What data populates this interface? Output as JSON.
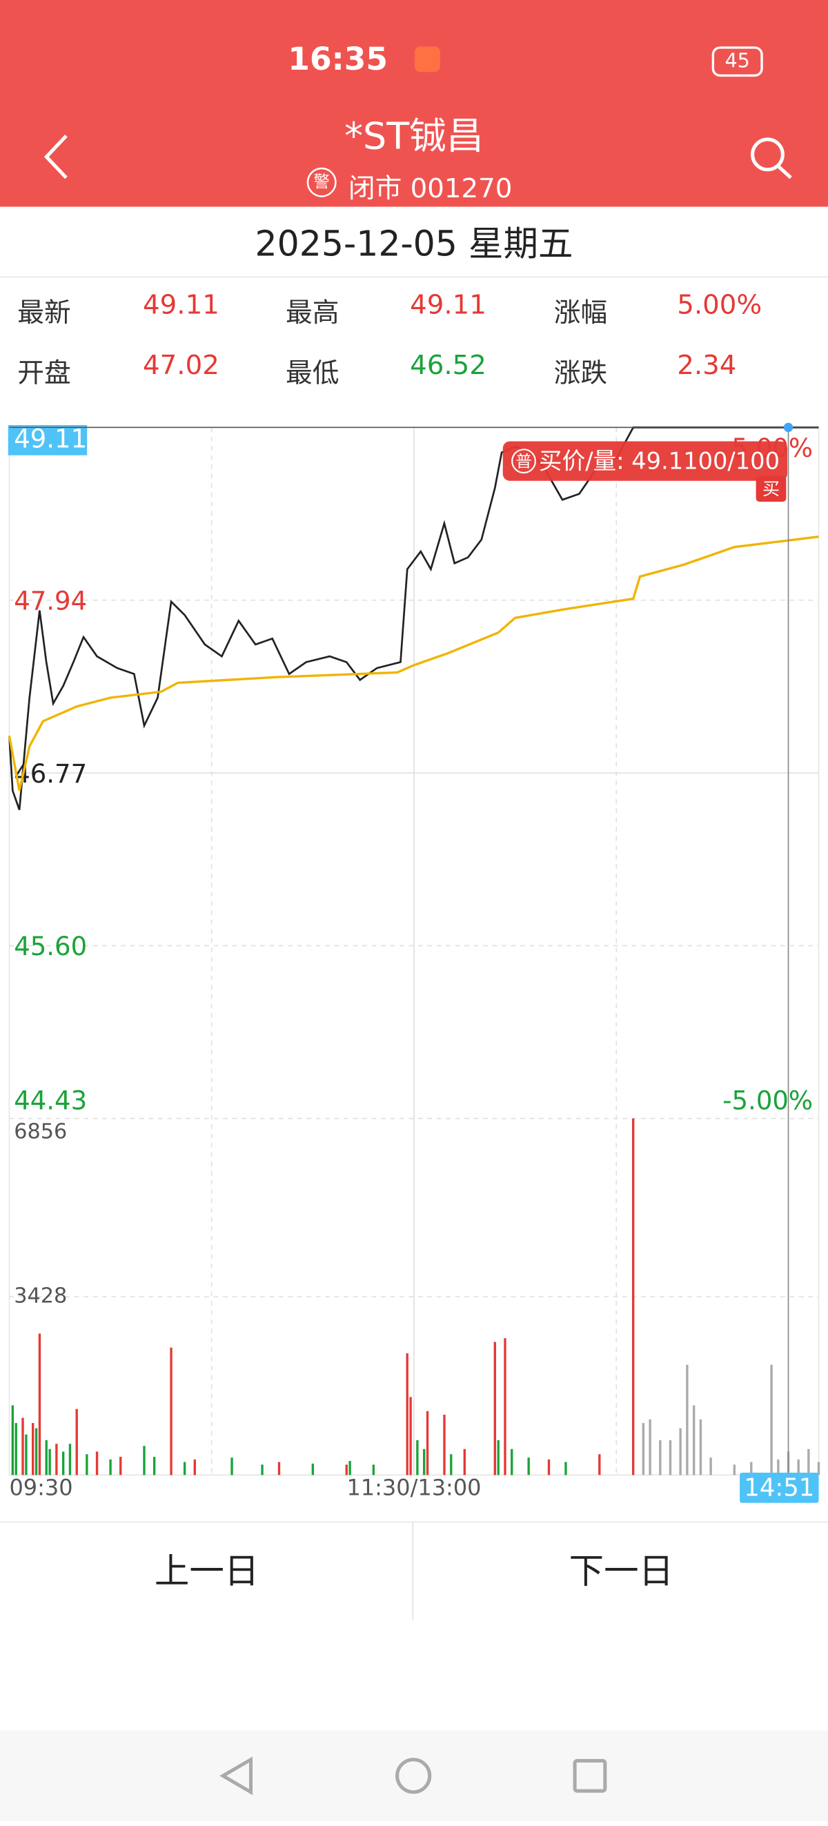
{
  "status_bar": {
    "time": "16:35",
    "battery": "45"
  },
  "header": {
    "title": "*ST铖昌",
    "badge": "警",
    "subtitle": "闭市 001270"
  },
  "date": "2025-12-05  星期五",
  "quote": [
    {
      "label": "最新",
      "value": 49.11
    },
    {
      "label": "最高",
      "value": 49.11
    },
    {
      "label": "涨幅",
      "value": "5.00%"
    },
    {
      "label": "开盘",
      "value": 47.02
    },
    {
      "label": "最低",
      "value": 46.52
    },
    {
      "label": "涨跌",
      "value": 2.34
    }
  ],
  "chart_data": {
    "type": "line",
    "xlim": [
      0,
      240
    ],
    "xticks": [
      {
        "value": 0,
        "label": "09:30"
      },
      {
        "value": 120,
        "label": "11:30/13:00"
      }
    ],
    "ylim": [
      44.43,
      49.11
    ],
    "yticks": [
      49.11,
      47.94,
      46.77,
      {
        "value": 45.6,
        "label": "45.60"
      },
      44.43
    ],
    "y2lim": [
      -5,
      5
    ],
    "y2ticks": [
      {
        "value": 5,
        "label": "5.00%"
      },
      {
        "value": -5,
        "label": "-5.00%"
      }
    ],
    "series": [
      {
        "color": "#222222",
        "x": [
          0,
          1,
          3,
          6,
          9,
          11,
          13,
          16,
          19,
          22,
          26,
          32,
          37,
          40,
          44,
          48,
          52,
          58,
          63,
          68,
          73,
          78,
          83,
          88,
          95,
          100,
          104,
          109,
          116,
          118,
          122,
          125,
          129,
          132,
          136,
          140,
          144,
          146,
          150,
          155,
          159,
          164,
          169,
          175,
          180,
          185,
          240
        ],
        "values": [
          47.02,
          46.65,
          46.52,
          47.28,
          47.87,
          47.52,
          47.24,
          47.36,
          47.52,
          47.69,
          47.56,
          47.48,
          47.44,
          47.09,
          47.28,
          47.93,
          47.84,
          47.64,
          47.56,
          47.8,
          47.64,
          47.68,
          47.44,
          47.52,
          47.56,
          47.52,
          47.4,
          47.48,
          47.52,
          48.15,
          48.27,
          48.15,
          48.46,
          48.19,
          48.23,
          48.35,
          48.7,
          48.94,
          48.98,
          48.94,
          48.82,
          48.62,
          48.66,
          48.86,
          48.9,
          49.11,
          49.11
        ]
      },
      {
        "color": "#f0b400",
        "x": [
          0,
          3,
          6,
          10,
          20,
          30,
          45,
          50,
          80,
          115,
          120,
          130,
          145,
          150,
          165,
          185,
          187,
          200,
          215,
          240
        ],
        "values": [
          47.02,
          46.65,
          46.95,
          47.12,
          47.22,
          47.28,
          47.32,
          47.38,
          47.42,
          47.45,
          47.5,
          47.58,
          47.72,
          47.82,
          47.88,
          47.95,
          48.1,
          48.18,
          48.3,
          48.37
        ]
      }
    ],
    "volume": {
      "ylim": [
        0,
        6856
      ],
      "yticks": [
        6856,
        3428
      ],
      "series": [
        {
          "color": "#e53935",
          "x": [
            4,
            7,
            9,
            14,
            20,
            26,
            33,
            48,
            55,
            80,
            100,
            118,
            119,
            124,
            129,
            135,
            144,
            147,
            160,
            175,
            185
          ],
          "values": [
            1100,
            1000,
            2720,
            600,
            1270,
            450,
            350,
            2450,
            300,
            250,
            200,
            2340,
            1500,
            1230,
            1160,
            500,
            2560,
            2630,
            300,
            400,
            6856
          ]
        },
        {
          "color": "#1aa33a",
          "x": [
            1,
            2,
            5,
            8,
            11,
            12,
            16,
            18,
            23,
            30,
            40,
            43,
            52,
            66,
            75,
            90,
            101,
            108,
            121,
            123,
            131,
            145,
            149,
            154,
            165
          ],
          "values": [
            1340,
            1000,
            780,
            900,
            670,
            500,
            450,
            600,
            400,
            300,
            560,
            350,
            250,
            335,
            200,
            220,
            270,
            200,
            670,
            500,
            400,
            670,
            500,
            335,
            250
          ]
        },
        {
          "color": "#aaaaaa",
          "x": [
            188,
            190,
            193,
            196,
            199,
            201,
            203,
            205,
            208,
            215,
            220,
            226,
            228,
            231,
            234,
            237,
            240
          ],
          "values": [
            1000,
            1070,
            670,
            670,
            900,
            2120,
            1340,
            1070,
            335,
            200,
            250,
            2120,
            300,
            450,
            300,
            500,
            250
          ]
        }
      ]
    },
    "cursor": {
      "x": 231,
      "label": "14:51",
      "price": 49.11,
      "badge": "普",
      "text": "买价/量: 49.1100/100",
      "side": "买"
    }
  },
  "buttons": [
    "上一日",
    "下一日"
  ]
}
